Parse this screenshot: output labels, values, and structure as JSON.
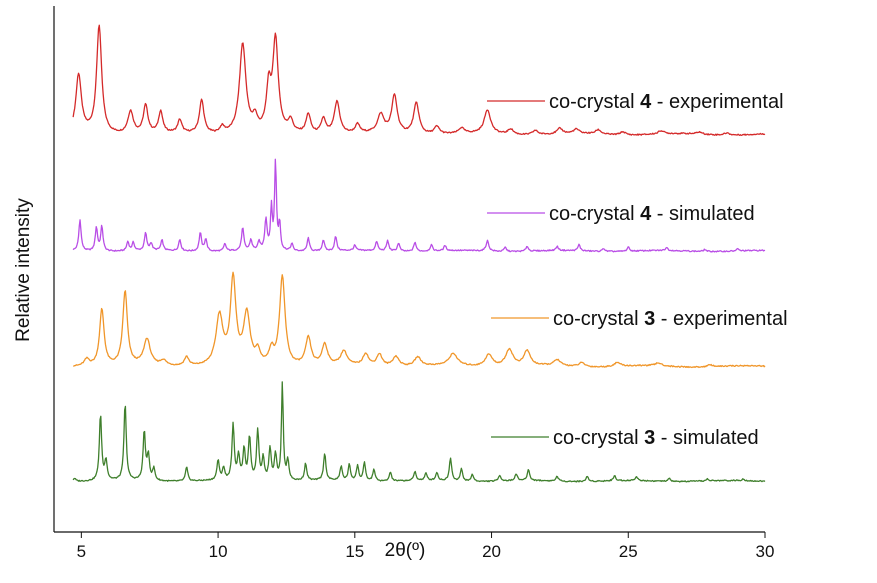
{
  "chart_data": {
    "type": "line",
    "xlabel": "2θ(º)",
    "ylabel": "Relative intensity",
    "xlim": [
      4,
      30
    ],
    "x_ticks": [
      5,
      10,
      15,
      20,
      25,
      30
    ],
    "grid": false,
    "legend_placement": "inline, right of each trace",
    "series": [
      {
        "name": "co-crystal 4 - experimental",
        "name_parts": [
          "co-crystal ",
          "4",
          " - experimental"
        ],
        "color": "#d42a2a",
        "baseline": 0.015,
        "peaks": [
          {
            "x": 4.9,
            "y": 0.54,
            "w": 0.12
          },
          {
            "x": 5.65,
            "y": 1.0,
            "w": 0.11
          },
          {
            "x": 6.8,
            "y": 0.21,
            "w": 0.12
          },
          {
            "x": 7.35,
            "y": 0.26,
            "w": 0.1
          },
          {
            "x": 7.9,
            "y": 0.2,
            "w": 0.09
          },
          {
            "x": 8.6,
            "y": 0.12,
            "w": 0.09
          },
          {
            "x": 9.4,
            "y": 0.31,
            "w": 0.1
          },
          {
            "x": 10.15,
            "y": 0.06,
            "w": 0.1
          },
          {
            "x": 10.9,
            "y": 0.83,
            "w": 0.14
          },
          {
            "x": 11.35,
            "y": 0.12,
            "w": 0.1
          },
          {
            "x": 11.85,
            "y": 0.38,
            "w": 0.1
          },
          {
            "x": 12.1,
            "y": 0.85,
            "w": 0.12
          },
          {
            "x": 12.65,
            "y": 0.11,
            "w": 0.1
          },
          {
            "x": 13.3,
            "y": 0.18,
            "w": 0.1
          },
          {
            "x": 13.85,
            "y": 0.14,
            "w": 0.1
          },
          {
            "x": 14.35,
            "y": 0.3,
            "w": 0.12
          },
          {
            "x": 15.1,
            "y": 0.08,
            "w": 0.1
          },
          {
            "x": 15.95,
            "y": 0.17,
            "w": 0.14
          },
          {
            "x": 16.45,
            "y": 0.35,
            "w": 0.12
          },
          {
            "x": 17.25,
            "y": 0.29,
            "w": 0.12
          },
          {
            "x": 18.0,
            "y": 0.07,
            "w": 0.12
          },
          {
            "x": 18.9,
            "y": 0.05,
            "w": 0.12
          },
          {
            "x": 19.85,
            "y": 0.22,
            "w": 0.14
          },
          {
            "x": 20.7,
            "y": 0.05,
            "w": 0.12
          },
          {
            "x": 21.6,
            "y": 0.04,
            "w": 0.12
          },
          {
            "x": 22.5,
            "y": 0.05,
            "w": 0.12
          },
          {
            "x": 23.1,
            "y": 0.04,
            "w": 0.12
          },
          {
            "x": 23.9,
            "y": 0.04,
            "w": 0.12
          },
          {
            "x": 24.8,
            "y": 0.03,
            "w": 0.12
          },
          {
            "x": 26.2,
            "y": 0.03,
            "w": 0.12
          },
          {
            "x": 27.6,
            "y": 0.02,
            "w": 0.12
          },
          {
            "x": 28.6,
            "y": 0.02,
            "w": 0.12
          }
        ]
      },
      {
        "name": "co-crystal 4 - simulated",
        "name_parts": [
          "co-crystal ",
          "4",
          " - simulated"
        ],
        "color": "#b94ee6",
        "baseline": 0.01,
        "peaks": [
          {
            "x": 4.95,
            "y": 0.3,
            "w": 0.05
          },
          {
            "x": 5.55,
            "y": 0.23,
            "w": 0.05
          },
          {
            "x": 5.75,
            "y": 0.24,
            "w": 0.05
          },
          {
            "x": 6.7,
            "y": 0.09,
            "w": 0.05
          },
          {
            "x": 6.9,
            "y": 0.08,
            "w": 0.05
          },
          {
            "x": 7.35,
            "y": 0.17,
            "w": 0.05
          },
          {
            "x": 7.55,
            "y": 0.07,
            "w": 0.05
          },
          {
            "x": 7.95,
            "y": 0.1,
            "w": 0.05
          },
          {
            "x": 8.6,
            "y": 0.11,
            "w": 0.05
          },
          {
            "x": 9.35,
            "y": 0.18,
            "w": 0.05
          },
          {
            "x": 9.55,
            "y": 0.12,
            "w": 0.05
          },
          {
            "x": 10.25,
            "y": 0.07,
            "w": 0.05
          },
          {
            "x": 10.9,
            "y": 0.22,
            "w": 0.05
          },
          {
            "x": 11.2,
            "y": 0.1,
            "w": 0.05
          },
          {
            "x": 11.5,
            "y": 0.08,
            "w": 0.05
          },
          {
            "x": 11.75,
            "y": 0.3,
            "w": 0.05
          },
          {
            "x": 11.95,
            "y": 0.4,
            "w": 0.04
          },
          {
            "x": 12.1,
            "y": 0.86,
            "w": 0.04
          },
          {
            "x": 12.25,
            "y": 0.26,
            "w": 0.04
          },
          {
            "x": 12.7,
            "y": 0.07,
            "w": 0.05
          },
          {
            "x": 13.3,
            "y": 0.13,
            "w": 0.05
          },
          {
            "x": 13.85,
            "y": 0.11,
            "w": 0.05
          },
          {
            "x": 14.3,
            "y": 0.14,
            "w": 0.05
          },
          {
            "x": 15.0,
            "y": 0.05,
            "w": 0.05
          },
          {
            "x": 15.8,
            "y": 0.09,
            "w": 0.05
          },
          {
            "x": 16.2,
            "y": 0.1,
            "w": 0.05
          },
          {
            "x": 16.6,
            "y": 0.08,
            "w": 0.05
          },
          {
            "x": 17.2,
            "y": 0.09,
            "w": 0.05
          },
          {
            "x": 17.8,
            "y": 0.06,
            "w": 0.05
          },
          {
            "x": 18.3,
            "y": 0.05,
            "w": 0.05
          },
          {
            "x": 19.85,
            "y": 0.1,
            "w": 0.06
          },
          {
            "x": 20.5,
            "y": 0.04,
            "w": 0.05
          },
          {
            "x": 21.3,
            "y": 0.05,
            "w": 0.05
          },
          {
            "x": 22.4,
            "y": 0.04,
            "w": 0.05
          },
          {
            "x": 23.2,
            "y": 0.06,
            "w": 0.05
          },
          {
            "x": 24.1,
            "y": 0.03,
            "w": 0.05
          },
          {
            "x": 25.0,
            "y": 0.04,
            "w": 0.05
          },
          {
            "x": 26.4,
            "y": 0.03,
            "w": 0.05
          },
          {
            "x": 27.8,
            "y": 0.02,
            "w": 0.05
          },
          {
            "x": 29.0,
            "y": 0.02,
            "w": 0.05
          }
        ]
      },
      {
        "name": "co-crystal 3 - experimental",
        "name_parts": [
          "co-crystal ",
          "3",
          " - experimental"
        ],
        "color": "#f0962a",
        "baseline": 0.015,
        "peaks": [
          {
            "x": 5.2,
            "y": 0.07,
            "w": 0.12
          },
          {
            "x": 5.75,
            "y": 0.57,
            "w": 0.1
          },
          {
            "x": 6.6,
            "y": 0.74,
            "w": 0.1
          },
          {
            "x": 7.4,
            "y": 0.26,
            "w": 0.14
          },
          {
            "x": 8.0,
            "y": 0.05,
            "w": 0.12
          },
          {
            "x": 8.85,
            "y": 0.09,
            "w": 0.1
          },
          {
            "x": 10.05,
            "y": 0.49,
            "w": 0.15
          },
          {
            "x": 10.55,
            "y": 0.85,
            "w": 0.12
          },
          {
            "x": 11.05,
            "y": 0.5,
            "w": 0.14
          },
          {
            "x": 11.45,
            "y": 0.12,
            "w": 0.1
          },
          {
            "x": 11.95,
            "y": 0.14,
            "w": 0.1
          },
          {
            "x": 12.35,
            "y": 0.89,
            "w": 0.12
          },
          {
            "x": 13.3,
            "y": 0.28,
            "w": 0.12
          },
          {
            "x": 13.9,
            "y": 0.21,
            "w": 0.12
          },
          {
            "x": 14.6,
            "y": 0.14,
            "w": 0.14
          },
          {
            "x": 15.4,
            "y": 0.12,
            "w": 0.12
          },
          {
            "x": 15.9,
            "y": 0.12,
            "w": 0.12
          },
          {
            "x": 16.5,
            "y": 0.1,
            "w": 0.14
          },
          {
            "x": 17.3,
            "y": 0.09,
            "w": 0.14
          },
          {
            "x": 18.6,
            "y": 0.12,
            "w": 0.18
          },
          {
            "x": 19.9,
            "y": 0.12,
            "w": 0.16
          },
          {
            "x": 20.65,
            "y": 0.17,
            "w": 0.16
          },
          {
            "x": 21.3,
            "y": 0.15,
            "w": 0.14
          },
          {
            "x": 22.4,
            "y": 0.06,
            "w": 0.14
          },
          {
            "x": 23.3,
            "y": 0.04,
            "w": 0.14
          },
          {
            "x": 24.6,
            "y": 0.04,
            "w": 0.14
          },
          {
            "x": 26.1,
            "y": 0.03,
            "w": 0.14
          },
          {
            "x": 28.0,
            "y": 0.02,
            "w": 0.14
          }
        ]
      },
      {
        "name": "co-crystal 3 - simulated",
        "name_parts": [
          "co-crystal ",
          "3",
          " - simulated"
        ],
        "color": "#3f7f2c",
        "baseline": 0.01,
        "peaks": [
          {
            "x": 4.75,
            "y": 0.03,
            "w": 0.05
          },
          {
            "x": 5.7,
            "y": 0.66,
            "w": 0.05
          },
          {
            "x": 5.9,
            "y": 0.2,
            "w": 0.05
          },
          {
            "x": 6.6,
            "y": 0.77,
            "w": 0.05
          },
          {
            "x": 7.3,
            "y": 0.49,
            "w": 0.05
          },
          {
            "x": 7.45,
            "y": 0.25,
            "w": 0.05
          },
          {
            "x": 7.65,
            "y": 0.12,
            "w": 0.05
          },
          {
            "x": 8.85,
            "y": 0.14,
            "w": 0.05
          },
          {
            "x": 10.0,
            "y": 0.2,
            "w": 0.05
          },
          {
            "x": 10.2,
            "y": 0.12,
            "w": 0.05
          },
          {
            "x": 10.55,
            "y": 0.55,
            "w": 0.05
          },
          {
            "x": 10.75,
            "y": 0.24,
            "w": 0.05
          },
          {
            "x": 10.95,
            "y": 0.3,
            "w": 0.05
          },
          {
            "x": 11.15,
            "y": 0.43,
            "w": 0.05
          },
          {
            "x": 11.45,
            "y": 0.5,
            "w": 0.05
          },
          {
            "x": 11.65,
            "y": 0.22,
            "w": 0.05
          },
          {
            "x": 11.9,
            "y": 0.32,
            "w": 0.05
          },
          {
            "x": 12.1,
            "y": 0.26,
            "w": 0.05
          },
          {
            "x": 12.35,
            "y": 0.97,
            "w": 0.04
          },
          {
            "x": 12.55,
            "y": 0.2,
            "w": 0.05
          },
          {
            "x": 13.2,
            "y": 0.17,
            "w": 0.05
          },
          {
            "x": 13.9,
            "y": 0.27,
            "w": 0.05
          },
          {
            "x": 14.5,
            "y": 0.14,
            "w": 0.05
          },
          {
            "x": 14.8,
            "y": 0.16,
            "w": 0.05
          },
          {
            "x": 15.1,
            "y": 0.15,
            "w": 0.05
          },
          {
            "x": 15.35,
            "y": 0.18,
            "w": 0.05
          },
          {
            "x": 15.7,
            "y": 0.12,
            "w": 0.05
          },
          {
            "x": 16.3,
            "y": 0.09,
            "w": 0.05
          },
          {
            "x": 17.2,
            "y": 0.09,
            "w": 0.05
          },
          {
            "x": 17.6,
            "y": 0.07,
            "w": 0.05
          },
          {
            "x": 18.0,
            "y": 0.08,
            "w": 0.05
          },
          {
            "x": 18.5,
            "y": 0.23,
            "w": 0.05
          },
          {
            "x": 18.9,
            "y": 0.12,
            "w": 0.05
          },
          {
            "x": 19.3,
            "y": 0.07,
            "w": 0.05
          },
          {
            "x": 20.3,
            "y": 0.06,
            "w": 0.05
          },
          {
            "x": 20.9,
            "y": 0.07,
            "w": 0.05
          },
          {
            "x": 21.35,
            "y": 0.11,
            "w": 0.05
          },
          {
            "x": 22.4,
            "y": 0.05,
            "w": 0.05
          },
          {
            "x": 23.5,
            "y": 0.05,
            "w": 0.05
          },
          {
            "x": 24.5,
            "y": 0.05,
            "w": 0.05
          },
          {
            "x": 25.3,
            "y": 0.04,
            "w": 0.05
          },
          {
            "x": 26.5,
            "y": 0.03,
            "w": 0.05
          },
          {
            "x": 27.9,
            "y": 0.02,
            "w": 0.05
          },
          {
            "x": 29.2,
            "y": 0.02,
            "w": 0.05
          }
        ]
      }
    ]
  }
}
